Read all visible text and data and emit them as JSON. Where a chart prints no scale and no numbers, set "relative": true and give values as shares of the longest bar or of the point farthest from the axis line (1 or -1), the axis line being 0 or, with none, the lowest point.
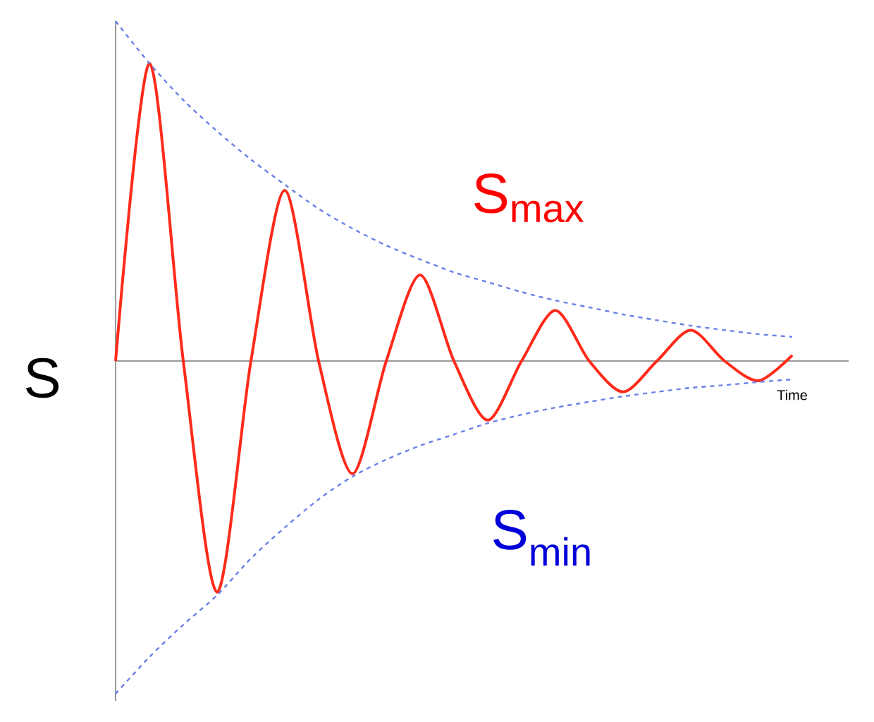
{
  "chart_data": {
    "type": "line",
    "relative": true,
    "xlabel": "Time",
    "ylabel": "S",
    "categories": [
      null,
      null,
      null,
      null,
      null,
      null,
      null,
      null,
      null,
      null,
      null,
      null,
      null,
      null,
      null,
      null,
      null,
      null,
      null,
      null,
      null
    ],
    "series": [
      {
        "color": "#ff2a1a",
        "line_style": "solid",
        "values": [
          0,
          0.876,
          0,
          -0.68,
          0,
          0.502,
          0,
          -0.332,
          0,
          0.253,
          0,
          -0.174,
          0,
          0.149,
          0,
          -0.091,
          0,
          0.091,
          0,
          -0.058,
          0.017
        ]
      },
      {
        "color": "#6b80e6",
        "line_style": "dashed",
        "values": [
          1,
          0.876,
          0.768,
          0.676,
          0.593,
          0.519,
          0.448,
          0.39,
          0.34,
          0.299,
          0.261,
          0.232,
          0.203,
          0.178,
          0.158,
          0.137,
          0.12,
          0.104,
          0.091,
          0.079,
          0.071
        ]
      },
      {
        "color": "#6b80e6",
        "line_style": "dashed",
        "values": [
          -0.979,
          -0.871,
          -0.776,
          -0.689,
          -0.581,
          -0.49,
          -0.407,
          -0.34,
          -0.29,
          -0.249,
          -0.216,
          -0.183,
          -0.158,
          -0.137,
          -0.12,
          -0.104,
          -0.091,
          -0.079,
          -0.071,
          -0.062,
          -0.054
        ]
      }
    ],
    "annotations": [
      "S$_{max}$",
      "S$_{min}$"
    ]
  }
}
